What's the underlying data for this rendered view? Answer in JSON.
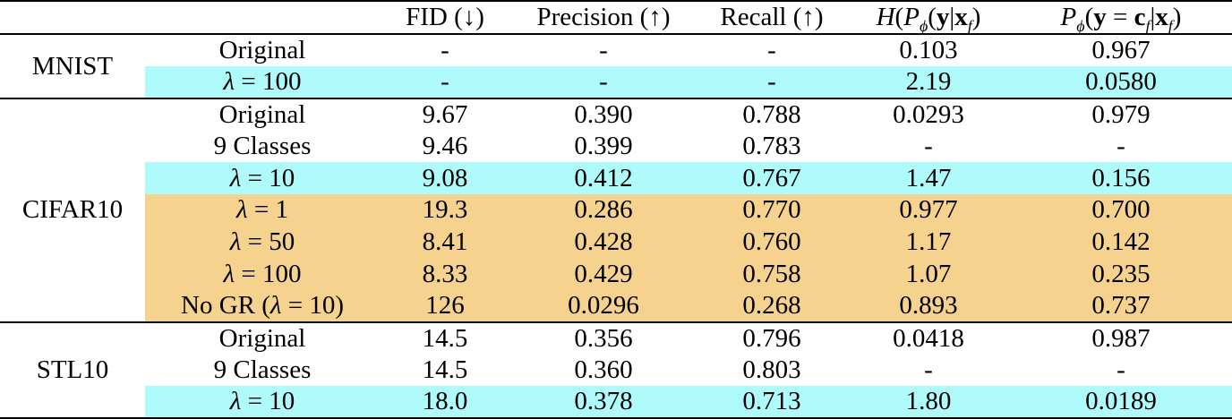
{
  "colors": {
    "highlight_cyan": "#AFFAFA",
    "highlight_orange": "#F5D28E",
    "rule": "#000000",
    "text": "#000000",
    "background": "#FFFFFF"
  },
  "table": {
    "headers": [
      {
        "name": "dataset",
        "html": ""
      },
      {
        "name": "variant",
        "html": ""
      },
      {
        "name": "fid",
        "html": "FID (↓)"
      },
      {
        "name": "precision",
        "html": "Precision (↑)"
      },
      {
        "name": "recall",
        "html": "Recall (↑)"
      },
      {
        "name": "entropy",
        "html": "<i>H</i>(<i>P</i><sub><i>ϕ</i></sub>(<b>y</b>|<b>x</b><sub><i>f</i></sub>)"
      },
      {
        "name": "class-prob",
        "html": "<i>P</i><sub><i>ϕ</i></sub>(<b>y</b> = <b>c</b><sub><i>f</i></sub>|<b>x</b><sub><i>f</i></sub>)"
      }
    ],
    "groups": [
      {
        "dataset": "MNIST",
        "rows": [
          {
            "label_html": "Original",
            "highlight": "none",
            "values": [
              "-",
              "-",
              "-",
              "0.103",
              "0.967"
            ]
          },
          {
            "label_html": "<i>λ</i> = 100",
            "highlight": "cyan",
            "values": [
              "-",
              "-",
              "-",
              "2.19",
              "0.0580"
            ]
          }
        ]
      },
      {
        "dataset": "CIFAR10",
        "rows": [
          {
            "label_html": "Original",
            "highlight": "none",
            "values": [
              "9.67",
              "0.390",
              "0.788",
              "0.0293",
              "0.979"
            ]
          },
          {
            "label_html": "9 Classes",
            "highlight": "none",
            "values": [
              "9.46",
              "0.399",
              "0.783",
              "-",
              "-"
            ]
          },
          {
            "label_html": "<i>λ</i> = 10",
            "highlight": "cyan",
            "values": [
              "9.08",
              "0.412",
              "0.767",
              "1.47",
              "0.156"
            ]
          },
          {
            "label_html": "<i>λ</i> = 1",
            "highlight": "orange",
            "values": [
              "19.3",
              "0.286",
              "0.770",
              "0.977",
              "0.700"
            ]
          },
          {
            "label_html": "<i>λ</i> = 50",
            "highlight": "orange",
            "values": [
              "8.41",
              "0.428",
              "0.760",
              "1.17",
              "0.142"
            ]
          },
          {
            "label_html": "<i>λ</i> = 100",
            "highlight": "orange",
            "values": [
              "8.33",
              "0.429",
              "0.758",
              "1.07",
              "0.235"
            ]
          },
          {
            "label_html": "No GR (<i>λ</i> = 10)",
            "highlight": "orange",
            "values": [
              "126",
              "0.0296",
              "0.268",
              "0.893",
              "0.737"
            ]
          }
        ]
      },
      {
        "dataset": "STL10",
        "rows": [
          {
            "label_html": "Original",
            "highlight": "none",
            "values": [
              "14.5",
              "0.356",
              "0.796",
              "0.0418",
              "0.987"
            ]
          },
          {
            "label_html": "9 Classes",
            "highlight": "none",
            "values": [
              "14.5",
              "0.360",
              "0.803",
              "-",
              "-"
            ]
          },
          {
            "label_html": "<i>λ</i> = 10",
            "highlight": "cyan",
            "values": [
              "18.0",
              "0.378",
              "0.713",
              "1.80",
              "0.0189"
            ]
          }
        ]
      }
    ]
  }
}
